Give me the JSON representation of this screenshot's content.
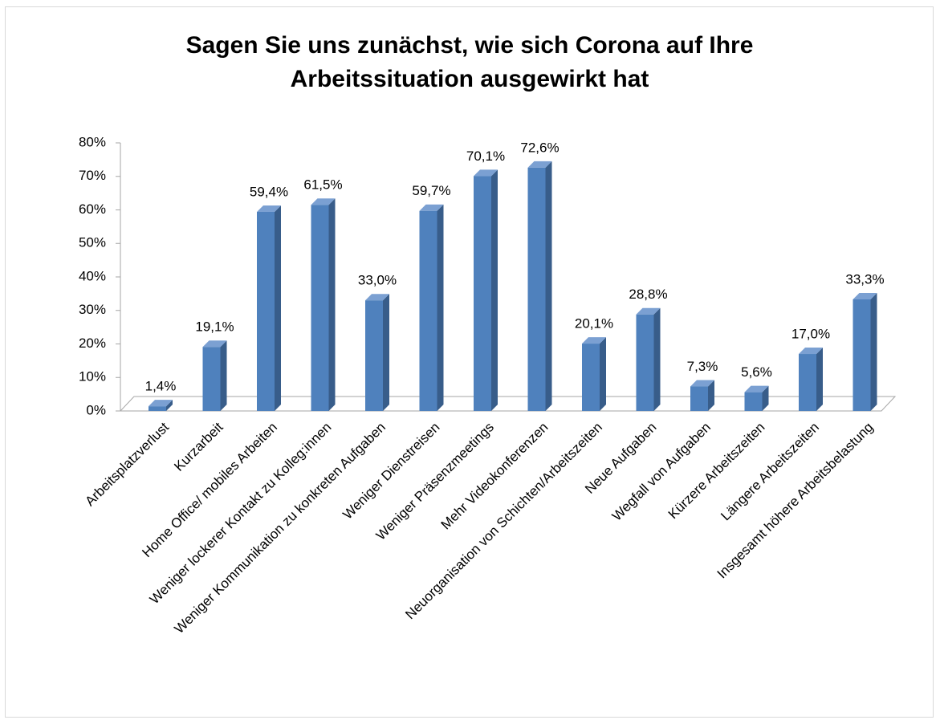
{
  "chart_data": {
    "type": "bar3d",
    "title": "Sagen Sie uns zunächst, wie sich Corona auf Ihre Arbeitssituation ausgewirkt hat",
    "categories": [
      "Arbeitsplatzverlust",
      "Kurzarbeit",
      "Home Office/ mobiles Arbeiten",
      "Weniger lockerer Kontakt zu Kolleg:innen",
      "Weniger Kommunikation zu konkreten Aufgaben",
      "Weniger Dienstreisen",
      "Weniger Präsenzmeetings",
      "Mehr Videokonferenzen",
      "Neuorganisation von Schichten/Arbeitszeiten",
      "Neue Aufgaben",
      "Wegfall von Aufgaben",
      "Kürzere Arbeitszeiten",
      "Längere Arbeitszeiten",
      "Insgesamt höhere Arbeitsbelastung"
    ],
    "values": [
      1.4,
      19.1,
      59.4,
      61.5,
      33.0,
      59.7,
      70.1,
      72.6,
      20.1,
      28.8,
      7.3,
      5.6,
      17.0,
      33.3
    ],
    "value_labels": [
      "1,4%",
      "19,1%",
      "59,4%",
      "61,5%",
      "33,0%",
      "59,7%",
      "70,1%",
      "72,6%",
      "20,1%",
      "28,8%",
      "7,3%",
      "5,6%",
      "17,0%",
      "33,3%"
    ],
    "color": "#4f81bd",
    "ylim": [
      0,
      80
    ],
    "yticks": [
      {
        "value": 0,
        "label": "0%"
      },
      {
        "value": 10,
        "label": "10%"
      },
      {
        "value": 20,
        "label": "20%"
      },
      {
        "value": 30,
        "label": "30%"
      },
      {
        "value": 40,
        "label": "40%"
      },
      {
        "value": 50,
        "label": "50%"
      },
      {
        "value": 60,
        "label": "60%"
      },
      {
        "value": 70,
        "label": "70%"
      },
      {
        "value": 80,
        "label": "80%"
      }
    ],
    "grid": false
  }
}
